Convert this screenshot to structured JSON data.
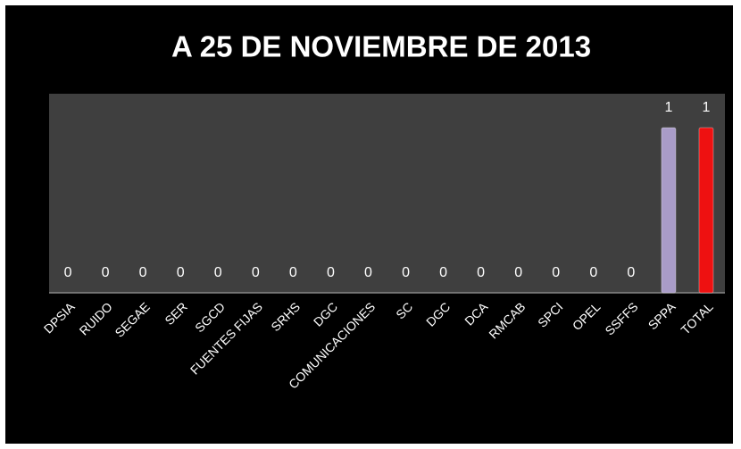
{
  "chart_data": {
    "type": "bar",
    "title": "A 25 DE NOVIEMBRE  DE 2013",
    "categories": [
      "DPSIA",
      "RUIDO",
      "SEGAE",
      "SER",
      "SGCD",
      "FUENTES FIJAS",
      "SRHS",
      "DGC",
      "COMUNICACIONES",
      "SC",
      "DGC",
      "DCA",
      "RMCAB",
      "SPCI",
      "OPEL",
      "SSFFS",
      "SPPA",
      "TOTAL"
    ],
    "values": [
      0,
      0,
      0,
      0,
      0,
      0,
      0,
      0,
      0,
      0,
      0,
      0,
      0,
      0,
      0,
      0,
      1,
      1
    ],
    "colors": [
      "#a99cc8",
      "#a99cc8",
      "#a99cc8",
      "#a99cc8",
      "#a99cc8",
      "#a99cc8",
      "#a99cc8",
      "#a99cc8",
      "#a99cc8",
      "#a99cc8",
      "#a99cc8",
      "#a99cc8",
      "#a99cc8",
      "#a99cc8",
      "#a99cc8",
      "#a99cc8",
      "#a99cc8",
      "#ee1111"
    ]
  }
}
